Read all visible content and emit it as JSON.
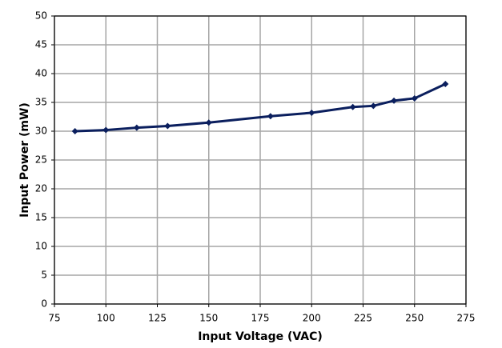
{
  "chart_data": {
    "type": "line",
    "x_label": "Input Voltage (VAC)",
    "y_label": "Input Power (mW)",
    "x": [
      85,
      100,
      115,
      130,
      150,
      180,
      200,
      220,
      230,
      240,
      250,
      265
    ],
    "series": [
      {
        "name": "Input Power",
        "color": "#0b1f5e",
        "values": [
          30.0,
          30.2,
          30.6,
          30.9,
          31.5,
          32.6,
          33.2,
          34.2,
          34.4,
          35.3,
          35.7,
          38.2
        ]
      }
    ],
    "xlim": [
      75,
      275
    ],
    "xticks": [
      75,
      100,
      125,
      150,
      175,
      200,
      225,
      250,
      275
    ],
    "ylim": [
      0,
      50
    ],
    "yticks": [
      0,
      5,
      10,
      15,
      20,
      25,
      30,
      35,
      40,
      45,
      50
    ],
    "grid": true,
    "grid_color": "#a6a6a6"
  }
}
